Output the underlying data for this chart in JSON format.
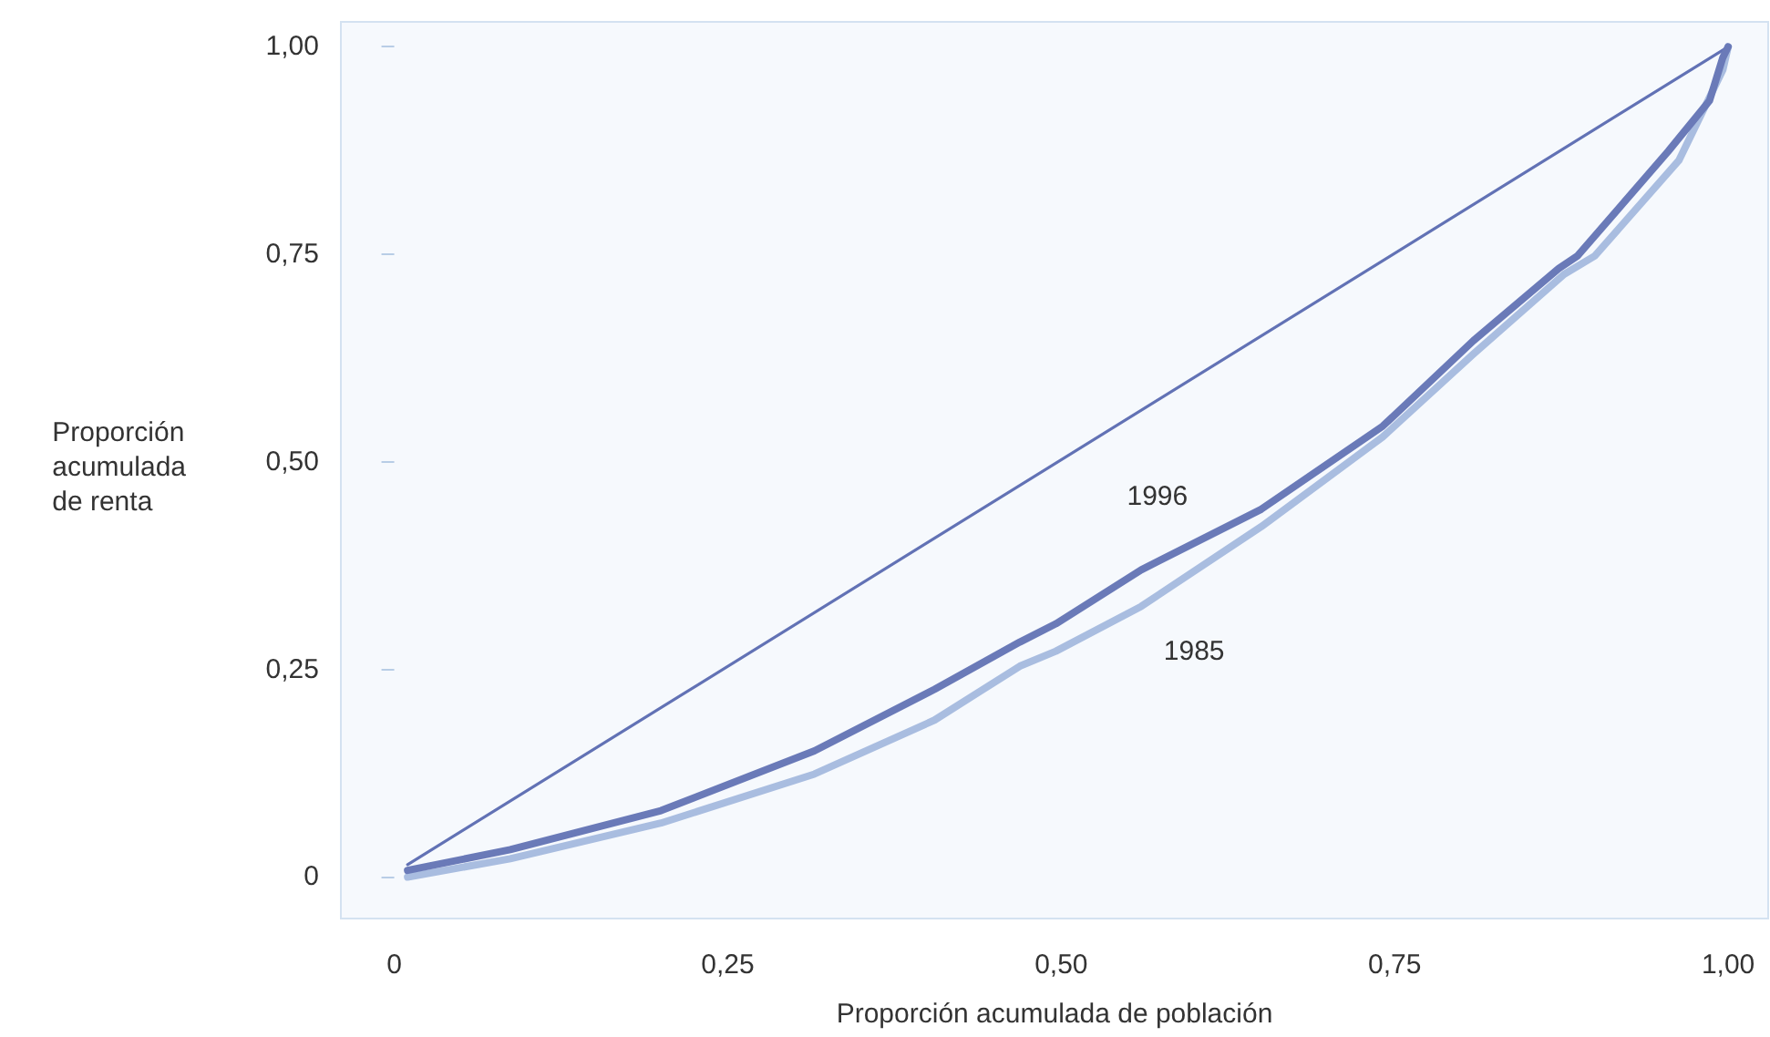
{
  "chart_data": {
    "type": "line",
    "xlabel": "Proporción acumulada de población",
    "ylabel": "Proporción\nacumulada\nde renta",
    "xlim": [
      -0.04,
      1.03
    ],
    "ylim": [
      -0.05,
      1.03
    ],
    "xticks": [
      0,
      {
        "value": 0.25,
        "label": "0,25"
      },
      {
        "value": 0.5,
        "label": "0,50"
      },
      {
        "value": 0.75,
        "label": "0,75"
      },
      {
        "value": 1,
        "label": "1,00"
      }
    ],
    "yticks": [
      0,
      {
        "value": 0.25,
        "label": "0,25"
      },
      {
        "value": 0.5,
        "label": "0,50"
      },
      {
        "value": 0.75,
        "label": "0,75"
      },
      {
        "value": 1,
        "label": "1,00"
      }
    ],
    "series": [
      {
        "color": "#6272b5",
        "x": [
          0.01,
          1
        ],
        "values": [
          0.015,
          1
        ]
      },
      {
        "name": "1985",
        "color": "#a9bde0",
        "x": [
          0.01,
          0.087,
          0.2,
          0.315,
          0.405,
          0.469,
          0.496,
          0.56,
          0.65,
          0.741,
          0.809,
          0.877,
          0.9,
          0.963,
          0.996,
          1
        ],
        "values": [
          0,
          0.022,
          0.065,
          0.124,
          0.189,
          0.254,
          0.272,
          0.326,
          0.422,
          0.53,
          0.63,
          0.726,
          0.748,
          0.863,
          0.972,
          1
        ]
      },
      {
        "name": "1996",
        "color": "#6a7ab8",
        "x": [
          0.01,
          0.087,
          0.2,
          0.315,
          0.405,
          0.469,
          0.496,
          0.56,
          0.65,
          0.741,
          0.809,
          0.873,
          0.887,
          0.955,
          0.986,
          0.996,
          1
        ],
        "values": [
          0.008,
          0.033,
          0.08,
          0.152,
          0.226,
          0.283,
          0.305,
          0.37,
          0.443,
          0.543,
          0.646,
          0.733,
          0.748,
          0.874,
          0.935,
          0.987,
          1
        ]
      }
    ],
    "grid": false,
    "legend": false,
    "marker": "none",
    "line_style": "solid"
  }
}
